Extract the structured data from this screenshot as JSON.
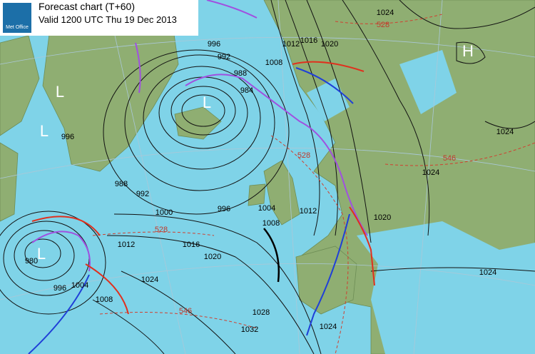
{
  "header": {
    "logo": "Met Office",
    "title": "Forecast chart (T+60)",
    "subtitle": "Valid 1200 UTC Thu 19 Dec 2013"
  },
  "pressure_centres": [
    "L",
    "L",
    "L",
    "L",
    "H"
  ],
  "isobar_labels": [
    1024,
    1016,
    1020,
    1012,
    1008,
    996,
    992,
    988,
    984,
    996,
    988,
    992,
    1000,
    996,
    1004,
    1008,
    1012,
    1016,
    1020,
    1024,
    996,
    1004,
    1008,
    1012,
    1028,
    1032,
    1024,
    1024,
    1020,
    1024,
    1024,
    980
  ],
  "thickness_labels": [
    528,
    528,
    546,
    546,
    528
  ]
}
